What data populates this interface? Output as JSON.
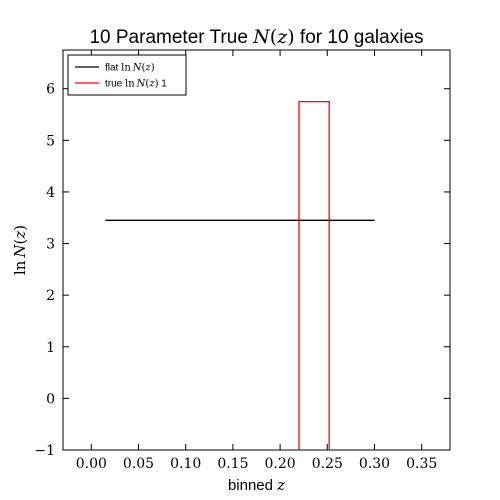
{
  "chart_data": {
    "type": "line",
    "title": {
      "prefix": "10 Parameter True ",
      "math": "N(z)",
      "suffix": " for 10 galaxies"
    },
    "xlabel": {
      "text": "binned ",
      "math": "z"
    },
    "ylabel": {
      "math": "ln N(z)"
    },
    "xlim": [
      -0.03,
      0.38
    ],
    "ylim": [
      -1,
      6.75
    ],
    "xticks": [
      0.0,
      0.05,
      0.1,
      0.15,
      0.2,
      0.25,
      0.3,
      0.35
    ],
    "xtick_labels": [
      "0.00",
      "0.05",
      "0.10",
      "0.15",
      "0.20",
      "0.25",
      "0.30",
      "0.35"
    ],
    "yticks": [
      -1,
      0,
      1,
      2,
      3,
      4,
      5,
      6
    ],
    "ytick_labels": [
      "−1",
      "0",
      "1",
      "2",
      "3",
      "4",
      "5",
      "6"
    ],
    "grid": false,
    "legend": {
      "placement": "top-left"
    },
    "series": [
      {
        "name": {
          "text": "flat ",
          "math": "ln N(z)",
          "suffix": ""
        },
        "color": "#000000",
        "x": [
          0.015,
          0.3
        ],
        "y": [
          3.45,
          3.45
        ]
      },
      {
        "name": {
          "text": "true ",
          "math": "ln N(z)",
          "suffix": " 1"
        },
        "color": "#ff0000",
        "x": [
          0.22,
          0.22,
          0.252,
          0.252
        ],
        "y": [
          -1,
          5.75,
          5.75,
          -1
        ]
      }
    ]
  }
}
